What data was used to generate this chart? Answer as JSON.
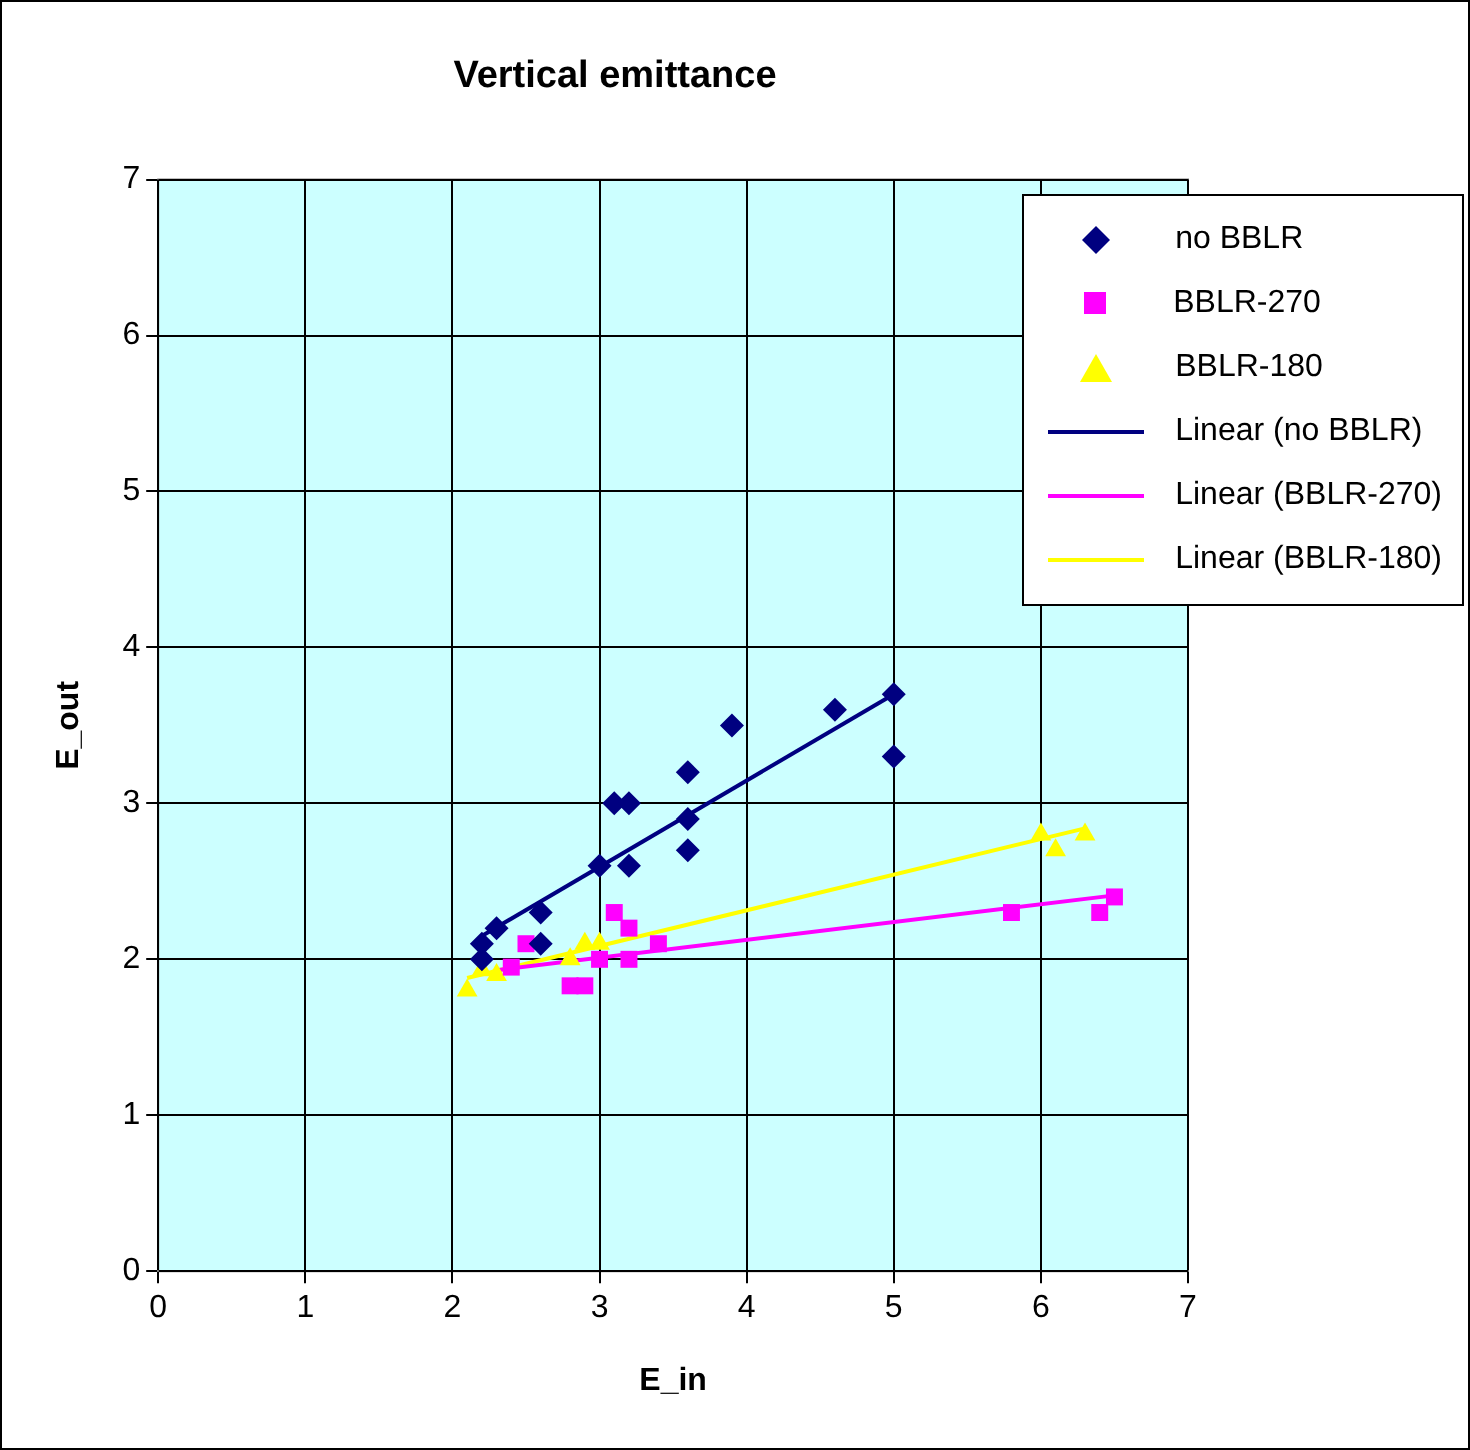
{
  "chart_data": {
    "type": "scatter",
    "title": "Vertical emittance",
    "xlabel": "E_in",
    "ylabel": "E_out",
    "xlim": [
      0,
      7
    ],
    "ylim": [
      0,
      7
    ],
    "xticks": [
      0,
      1,
      2,
      3,
      4,
      5,
      6,
      7
    ],
    "yticks": [
      0,
      1,
      2,
      3,
      4,
      5,
      6,
      7
    ],
    "grid": true,
    "legend": "top right",
    "series": [
      {
        "name": "no BBLR",
        "color": "#000080",
        "marker": "diamond",
        "x": [
          2.2,
          2.2,
          2.3,
          2.6,
          2.6,
          3.0,
          3.1,
          3.2,
          3.2,
          3.6,
          3.6,
          3.6,
          3.9,
          4.6,
          5.0,
          5.0
        ],
        "values": [
          2.1,
          2.0,
          2.2,
          2.3,
          2.1,
          2.6,
          3.0,
          3.0,
          2.6,
          3.2,
          2.9,
          2.7,
          3.5,
          3.6,
          3.7,
          3.3
        ]
      },
      {
        "name": "BBLR-270",
        "color": "#ff00ff",
        "marker": "square",
        "x": [
          2.4,
          2.5,
          2.8,
          2.9,
          3.0,
          3.1,
          3.2,
          3.2,
          3.4,
          5.8,
          6.4,
          6.5
        ],
        "values": [
          1.95,
          2.1,
          1.83,
          1.83,
          2.0,
          2.3,
          2.2,
          2.0,
          2.1,
          2.3,
          2.3,
          2.4
        ]
      },
      {
        "name": "BBLR-180",
        "color": "#ffff00",
        "marker": "triangle",
        "x": [
          2.1,
          2.2,
          2.3,
          2.8,
          2.9,
          3.0,
          6.0,
          6.1,
          6.3
        ],
        "values": [
          1.8,
          1.93,
          1.9,
          2.0,
          2.1,
          2.1,
          2.8,
          2.7,
          2.8
        ]
      },
      {
        "name": "Linear (no BBLR)",
        "type": "line",
        "color": "#000080",
        "marker": "none",
        "x": [
          2.2,
          5.0
        ],
        "values": [
          2.15,
          3.7
        ]
      },
      {
        "name": "Linear (BBLR-270)",
        "type": "line",
        "color": "#ff00ff",
        "marker": "none",
        "x": [
          2.3,
          6.5
        ],
        "values": [
          1.93,
          2.41
        ]
      },
      {
        "name": "Linear (BBLR-180)",
        "type": "line",
        "color": "#ffff00",
        "marker": "none",
        "x": [
          2.1,
          6.3
        ],
        "values": [
          1.88,
          2.84
        ]
      }
    ]
  }
}
